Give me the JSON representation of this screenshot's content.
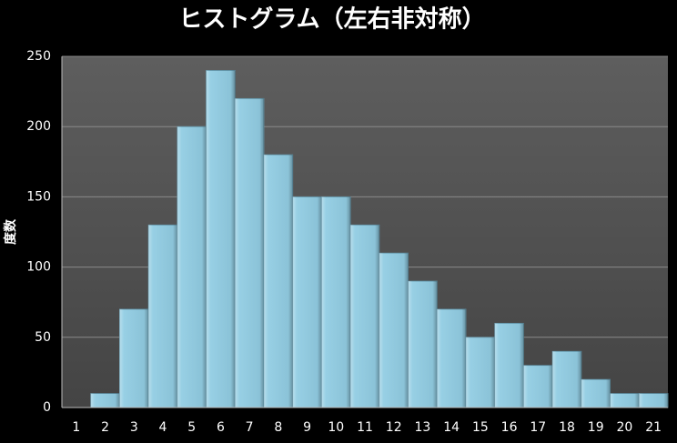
{
  "chart_data": {
    "type": "bar",
    "title": "ヒストグラム（左右非対称）",
    "y_label": "度数",
    "categories": [
      "1",
      "2",
      "3",
      "4",
      "5",
      "6",
      "7",
      "8",
      "9",
      "10",
      "11",
      "12",
      "13",
      "14",
      "15",
      "16",
      "17",
      "18",
      "19",
      "20",
      "21"
    ],
    "values": [
      0,
      10,
      70,
      130,
      200,
      240,
      220,
      180,
      150,
      150,
      130,
      110,
      90,
      70,
      50,
      60,
      30,
      40,
      20,
      10,
      10
    ],
    "color": "#92cde3",
    "ylim": [
      0,
      250
    ],
    "yticks": [
      0,
      50,
      100,
      150,
      200,
      250
    ],
    "grid": true
  }
}
